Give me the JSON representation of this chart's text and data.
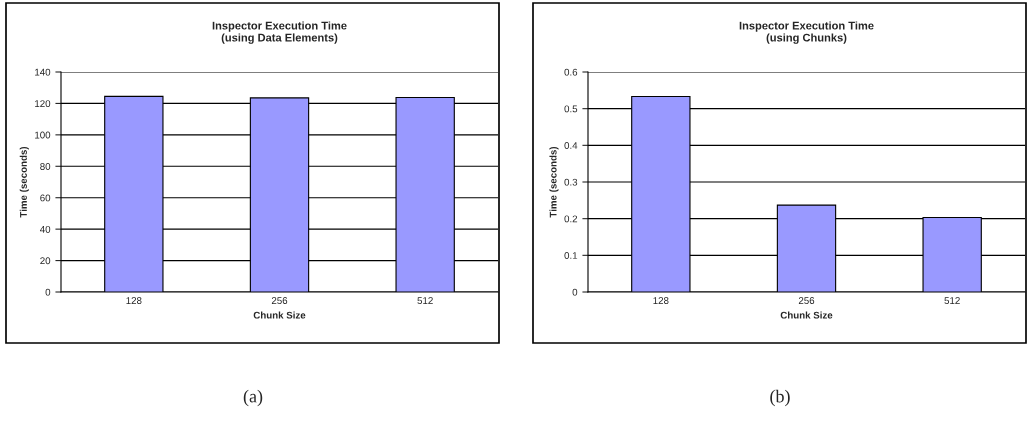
{
  "chart_data": [
    {
      "type": "bar",
      "title": "Inspector Execution Time\n(using Data Elements)",
      "xlabel": "Chunk Size",
      "ylabel": "Time (seconds)",
      "categories": [
        "128",
        "256",
        "512"
      ],
      "series": [
        {
          "color": "#9999ff",
          "values": [
            124.5,
            123.5,
            123.8
          ]
        }
      ],
      "ylim": [
        0,
        140
      ],
      "yticks": [
        0,
        20,
        40,
        60,
        80,
        100,
        120,
        140
      ],
      "grid": "y",
      "legend": false,
      "annotations": [
        "(a)"
      ]
    },
    {
      "type": "bar",
      "title": "Inspector Execution Time\n(using Chunks)",
      "xlabel": "Chunk Size",
      "ylabel": "Time (seconds)",
      "categories": [
        "128",
        "256",
        "512"
      ],
      "series": [
        {
          "color": "#9999ff",
          "values": [
            0.533,
            0.237,
            0.203
          ]
        }
      ],
      "ylim": [
        0,
        0.6
      ],
      "yticks": [
        0,
        0.1,
        0.2,
        0.3,
        0.4,
        0.5,
        0.6
      ],
      "grid": "y",
      "legend": false,
      "annotations": [
        "(b)"
      ]
    }
  ]
}
